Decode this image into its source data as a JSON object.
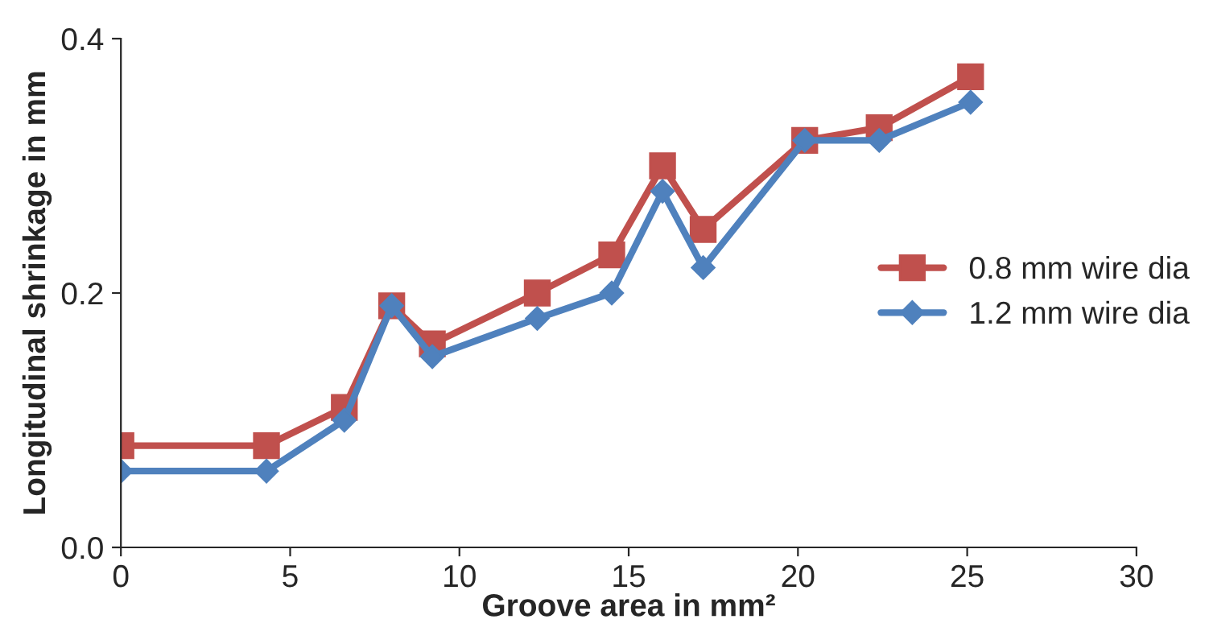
{
  "chart_data": {
    "type": "line",
    "xlabel": "Groove area in mm²",
    "ylabel": "Longitudinal shrinkage in mm",
    "xlim": [
      0,
      30
    ],
    "xticks": [
      0,
      5,
      10,
      15,
      20,
      25,
      30
    ],
    "ylim": [
      0,
      0.4
    ],
    "yticks": [
      {
        "value": 0,
        "label": "0.0"
      },
      {
        "value": 0.2,
        "label": "0.2"
      },
      {
        "value": 0.4,
        "label": "0.4"
      }
    ],
    "grid": false,
    "legend": "right",
    "line_style": "solid",
    "series": [
      {
        "name": "0.8 mm wire dia",
        "color": "#c0504d",
        "marker": "square",
        "x": [
          0,
          4.3,
          6.6,
          8.0,
          9.2,
          12.3,
          14.5,
          16.0,
          17.2,
          20.2,
          22.4,
          25.1
        ],
        "values": [
          0.08,
          0.08,
          0.11,
          0.19,
          0.16,
          0.2,
          0.23,
          0.3,
          0.25,
          0.32,
          0.33,
          0.37
        ]
      },
      {
        "name": "1.2 mm wire dia",
        "color": "#4f81bd",
        "marker": "diamond",
        "x": [
          0,
          4.3,
          6.6,
          8.0,
          9.2,
          12.3,
          14.5,
          16.0,
          17.2,
          20.2,
          22.4,
          25.1
        ],
        "values": [
          0.06,
          0.06,
          0.1,
          0.19,
          0.15,
          0.18,
          0.2,
          0.28,
          0.22,
          0.32,
          0.32,
          0.35
        ]
      }
    ]
  }
}
